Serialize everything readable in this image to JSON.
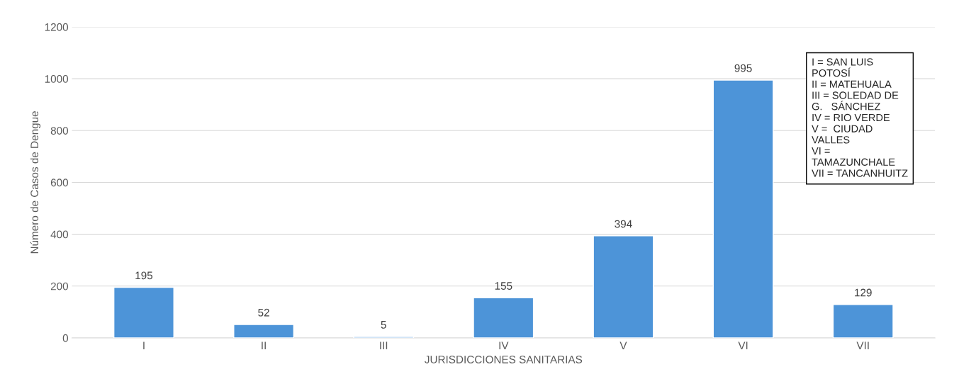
{
  "chart_data": {
    "type": "bar",
    "xlabel": "JURISDICCIONES SANITARIAS",
    "ylabel": "Número de Casos de Dengue",
    "categories": [
      "I",
      "II",
      "III",
      "IV",
      "V",
      "VI",
      "VII"
    ],
    "values": [
      195,
      52,
      5,
      155,
      394,
      995,
      129
    ],
    "color": "#4d94d8",
    "ylim": [
      0,
      1200
    ],
    "yticks": [
      0,
      200,
      400,
      600,
      800,
      1000,
      1200
    ],
    "grid": "y",
    "data_labels": true,
    "annotations": [
      "I = SAN LUIS\nPOTOSÍ\nII = MATEHUALA\nIII = SOLEDAD DE\nG.   SÁNCHEZ\nIV = RIO VERDE\nV =  CIUDAD\nVALLES\nVI =\nTAMAZUNCHALE\nVII = TANCANHUITZ"
    ]
  }
}
